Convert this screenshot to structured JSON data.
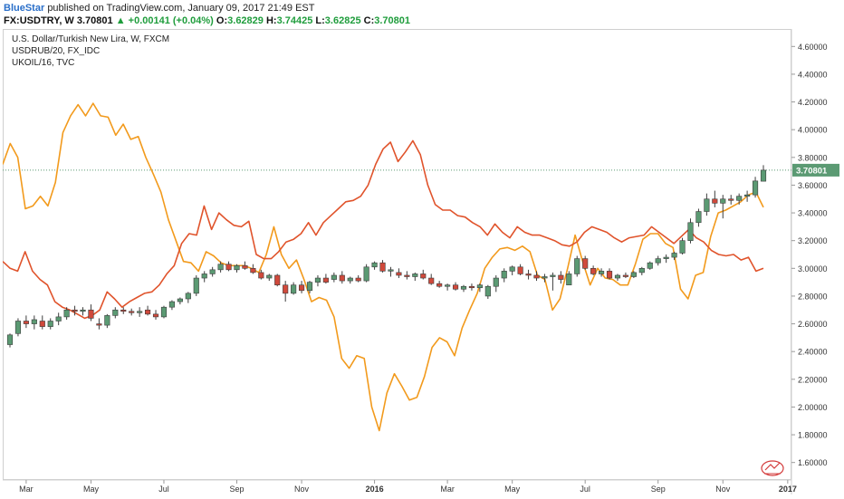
{
  "header": {
    "author": "BlueStar",
    "published_text": "published on TradingView.com, January 09, 2017 21:49 EST",
    "symbol": "FX:USDTRY, W",
    "price": "3.70801",
    "change_icon": "up-triangle-icon",
    "change": "+0.00141 (+0.04%)",
    "o_label": "O:",
    "o_value": "3.62829",
    "h_label": "H:",
    "h_value": "3.74425",
    "l_label": "L:",
    "l_value": "3.62825",
    "c_label": "C:",
    "c_value": "3.70801"
  },
  "legend": {
    "main": "U.S. Dollar/Turkish New Lira, W, FXCM",
    "overlay1": "USDRUB/20, FX_IDC",
    "overlay2": "UKOIL/16, TVC"
  },
  "last_price_label": "3.70801",
  "watermark_icon": "tradingview-logo-icon",
  "colors": {
    "up_candle": "#5b9a73",
    "down_candle": "#d0493b",
    "usdrub_line": "#f29a1c",
    "ukoil_line": "#e0532b",
    "price_label_bg": "#5b9a73"
  },
  "chart_data": {
    "type": "line",
    "title": "U.S. Dollar/Turkish New Lira, W, FXCM",
    "ylim": [
      1.5,
      4.7
    ],
    "y_ticks": [
      "4.60000",
      "4.40000",
      "4.20000",
      "4.00000",
      "3.80000",
      "3.60000",
      "3.40000",
      "3.20000",
      "3.00000",
      "2.80000",
      "2.60000",
      "2.40000",
      "2.20000",
      "2.00000",
      "1.80000",
      "1.60000"
    ],
    "x_ticks": [
      "Mar",
      "May",
      "Jul",
      "Sep",
      "Nov",
      "2016",
      "Mar",
      "May",
      "Jul",
      "Sep",
      "Nov",
      "2017"
    ],
    "grid": false,
    "last_price": 3.70801,
    "candles": [
      [
        2.45,
        2.53,
        2.43,
        2.52
      ],
      [
        2.53,
        2.64,
        2.51,
        2.62
      ],
      [
        2.62,
        2.66,
        2.57,
        2.6
      ],
      [
        2.6,
        2.66,
        2.56,
        2.63
      ],
      [
        2.62,
        2.66,
        2.56,
        2.58
      ],
      [
        2.58,
        2.64,
        2.56,
        2.62
      ],
      [
        2.62,
        2.68,
        2.59,
        2.65
      ],
      [
        2.65,
        2.72,
        2.63,
        2.7
      ],
      [
        2.7,
        2.73,
        2.66,
        2.69
      ],
      [
        2.69,
        2.72,
        2.66,
        2.7
      ],
      [
        2.7,
        2.74,
        2.62,
        2.64
      ],
      [
        2.6,
        2.64,
        2.56,
        2.59
      ],
      [
        2.59,
        2.67,
        2.57,
        2.66
      ],
      [
        2.66,
        2.72,
        2.64,
        2.7
      ],
      [
        2.7,
        2.72,
        2.67,
        2.69
      ],
      [
        2.69,
        2.71,
        2.66,
        2.68
      ],
      [
        2.68,
        2.72,
        2.65,
        2.69
      ],
      [
        2.7,
        2.73,
        2.66,
        2.67
      ],
      [
        2.67,
        2.7,
        2.63,
        2.65
      ],
      [
        2.65,
        2.73,
        2.64,
        2.72
      ],
      [
        2.72,
        2.77,
        2.7,
        2.76
      ],
      [
        2.76,
        2.79,
        2.74,
        2.78
      ],
      [
        2.78,
        2.83,
        2.75,
        2.82
      ],
      [
        2.82,
        2.95,
        2.8,
        2.93
      ],
      [
        2.93,
        2.98,
        2.9,
        2.96
      ],
      [
        2.96,
        3.01,
        2.94,
        2.99
      ],
      [
        2.99,
        3.05,
        2.97,
        3.03
      ],
      [
        3.03,
        3.05,
        2.98,
        2.99
      ],
      [
        2.99,
        3.03,
        2.97,
        3.02
      ],
      [
        3.02,
        3.05,
        2.99,
        3.0
      ],
      [
        3.0,
        3.03,
        2.96,
        2.97
      ],
      [
        2.97,
        2.99,
        2.92,
        2.93
      ],
      [
        2.93,
        2.96,
        2.91,
        2.95
      ],
      [
        2.95,
        2.96,
        2.87,
        2.88
      ],
      [
        2.88,
        2.91,
        2.76,
        2.82
      ],
      [
        2.82,
        2.9,
        2.81,
        2.88
      ],
      [
        2.88,
        2.91,
        2.82,
        2.84
      ],
      [
        2.84,
        2.91,
        2.82,
        2.9
      ],
      [
        2.9,
        2.95,
        2.87,
        2.93
      ],
      [
        2.93,
        2.96,
        2.89,
        2.9
      ],
      [
        2.92,
        2.97,
        2.9,
        2.95
      ],
      [
        2.95,
        2.98,
        2.89,
        2.91
      ],
      [
        2.91,
        2.94,
        2.89,
        2.93
      ],
      [
        2.93,
        2.95,
        2.9,
        2.91
      ],
      [
        2.91,
        3.03,
        2.9,
        3.01
      ],
      [
        3.01,
        3.05,
        2.99,
        3.04
      ],
      [
        3.04,
        3.06,
        2.97,
        2.98
      ],
      [
        2.98,
        3.01,
        2.94,
        2.99
      ],
      [
        2.97,
        3.0,
        2.93,
        2.95
      ],
      [
        2.95,
        2.98,
        2.92,
        2.94
      ],
      [
        2.94,
        2.97,
        2.91,
        2.96
      ],
      [
        2.96,
        2.99,
        2.92,
        2.93
      ],
      [
        2.93,
        2.96,
        2.88,
        2.89
      ],
      [
        2.89,
        2.91,
        2.86,
        2.87
      ],
      [
        2.87,
        2.89,
        2.84,
        2.88
      ],
      [
        2.88,
        2.9,
        2.84,
        2.85
      ],
      [
        2.85,
        2.88,
        2.83,
        2.87
      ],
      [
        2.87,
        2.89,
        2.84,
        2.86
      ],
      [
        2.86,
        2.89,
        2.83,
        2.88
      ],
      [
        2.8,
        2.88,
        2.78,
        2.87
      ],
      [
        2.87,
        2.95,
        2.83,
        2.93
      ],
      [
        2.93,
        3.0,
        2.9,
        2.98
      ],
      [
        2.98,
        3.02,
        2.95,
        3.01
      ],
      [
        3.01,
        3.03,
        2.95,
        2.96
      ],
      [
        2.96,
        2.99,
        2.92,
        2.95
      ],
      [
        2.95,
        2.98,
        2.91,
        2.93
      ],
      [
        2.93,
        2.96,
        2.9,
        2.94
      ],
      [
        2.94,
        2.97,
        2.84,
        2.95
      ],
      [
        2.95,
        2.98,
        2.89,
        2.92
      ],
      [
        2.88,
        2.98,
        2.88,
        2.96
      ],
      [
        2.96,
        3.09,
        2.94,
        3.07
      ],
      [
        3.07,
        3.09,
        2.99,
        3.0
      ],
      [
        3.0,
        3.02,
        2.95,
        2.96
      ],
      [
        2.96,
        3.0,
        2.94,
        2.98
      ],
      [
        2.98,
        3.0,
        2.92,
        2.93
      ],
      [
        2.93,
        2.96,
        2.91,
        2.95
      ],
      [
        2.95,
        2.97,
        2.93,
        2.94
      ],
      [
        2.94,
        2.98,
        2.93,
        2.97
      ],
      [
        2.97,
        3.01,
        2.95,
        3.0
      ],
      [
        3.0,
        3.05,
        2.99,
        3.04
      ],
      [
        3.04,
        3.09,
        3.02,
        3.07
      ],
      [
        3.07,
        3.1,
        3.04,
        3.08
      ],
      [
        3.08,
        3.12,
        3.06,
        3.11
      ],
      [
        3.11,
        3.22,
        3.1,
        3.2
      ],
      [
        3.2,
        3.36,
        3.18,
        3.33
      ],
      [
        3.33,
        3.43,
        3.3,
        3.41
      ],
      [
        3.41,
        3.54,
        3.38,
        3.5
      ],
      [
        3.5,
        3.56,
        3.44,
        3.47
      ],
      [
        3.47,
        3.53,
        3.36,
        3.5
      ],
      [
        3.5,
        3.53,
        3.46,
        3.49
      ],
      [
        3.49,
        3.54,
        3.46,
        3.52
      ],
      [
        3.52,
        3.56,
        3.48,
        3.53
      ],
      [
        3.53,
        3.66,
        3.51,
        3.63
      ],
      [
        3.62829,
        3.74425,
        3.62825,
        3.70801
      ]
    ],
    "series": [
      {
        "name": "USDRUB/20, FX_IDC",
        "values": [
          3.75,
          3.9,
          3.8,
          3.43,
          3.45,
          3.52,
          3.45,
          3.62,
          3.98,
          4.1,
          4.18,
          4.1,
          4.19,
          4.1,
          4.09,
          3.96,
          4.04,
          3.93,
          3.95,
          3.8,
          3.68,
          3.55,
          3.35,
          3.2,
          3.05,
          3.04,
          2.98,
          3.12,
          3.09,
          3.04,
          3.02,
          3.02,
          3.02,
          3.0,
          2.97,
          3.1,
          3.3,
          3.1,
          3.0,
          3.06,
          2.92,
          2.76,
          2.79,
          2.77,
          2.65,
          2.35,
          2.28,
          2.37,
          2.35,
          2.0,
          1.83,
          2.1,
          2.24,
          2.15,
          2.05,
          2.07,
          2.22,
          2.43,
          2.5,
          2.47,
          2.37,
          2.57,
          2.7,
          2.82,
          3.0,
          3.08,
          3.14,
          3.15,
          3.13,
          3.16,
          3.12,
          2.95,
          2.92,
          2.7,
          2.78,
          3.0,
          3.24,
          3.05,
          2.88,
          3.0,
          2.93,
          2.92,
          2.88,
          2.88,
          3.03,
          3.21,
          3.25,
          3.25,
          3.18,
          3.15,
          2.85,
          2.78,
          2.95,
          2.97,
          3.23,
          3.4,
          3.42,
          3.45,
          3.48,
          3.53,
          3.55,
          3.44
        ]
      },
      {
        "name": "UKOIL/16, TVC",
        "values": [
          3.05,
          3.0,
          2.98,
          3.12,
          2.98,
          2.92,
          2.88,
          2.76,
          2.72,
          2.7,
          2.67,
          2.64,
          2.66,
          2.7,
          2.83,
          2.78,
          2.72,
          2.76,
          2.79,
          2.82,
          2.83,
          2.88,
          2.96,
          3.02,
          3.18,
          3.25,
          3.24,
          3.45,
          3.28,
          3.4,
          3.35,
          3.31,
          3.3,
          3.34,
          3.1,
          3.07,
          3.07,
          3.12,
          3.19,
          3.21,
          3.25,
          3.33,
          3.24,
          3.33,
          3.38,
          3.43,
          3.48,
          3.49,
          3.52,
          3.6,
          3.75,
          3.86,
          3.91,
          3.77,
          3.84,
          3.92,
          3.82,
          3.6,
          3.46,
          3.42,
          3.42,
          3.38,
          3.37,
          3.33,
          3.3,
          3.24,
          3.32,
          3.26,
          3.22,
          3.3,
          3.26,
          3.24,
          3.24,
          3.22,
          3.2,
          3.17,
          3.16,
          3.19,
          3.26,
          3.3,
          3.28,
          3.26,
          3.22,
          3.19,
          3.22,
          3.23,
          3.24,
          3.3,
          3.26,
          3.22,
          3.18,
          3.23,
          3.28,
          3.22,
          3.19,
          3.13,
          3.1,
          3.09,
          3.1,
          3.06,
          3.08,
          2.98,
          3.0
        ]
      }
    ]
  }
}
